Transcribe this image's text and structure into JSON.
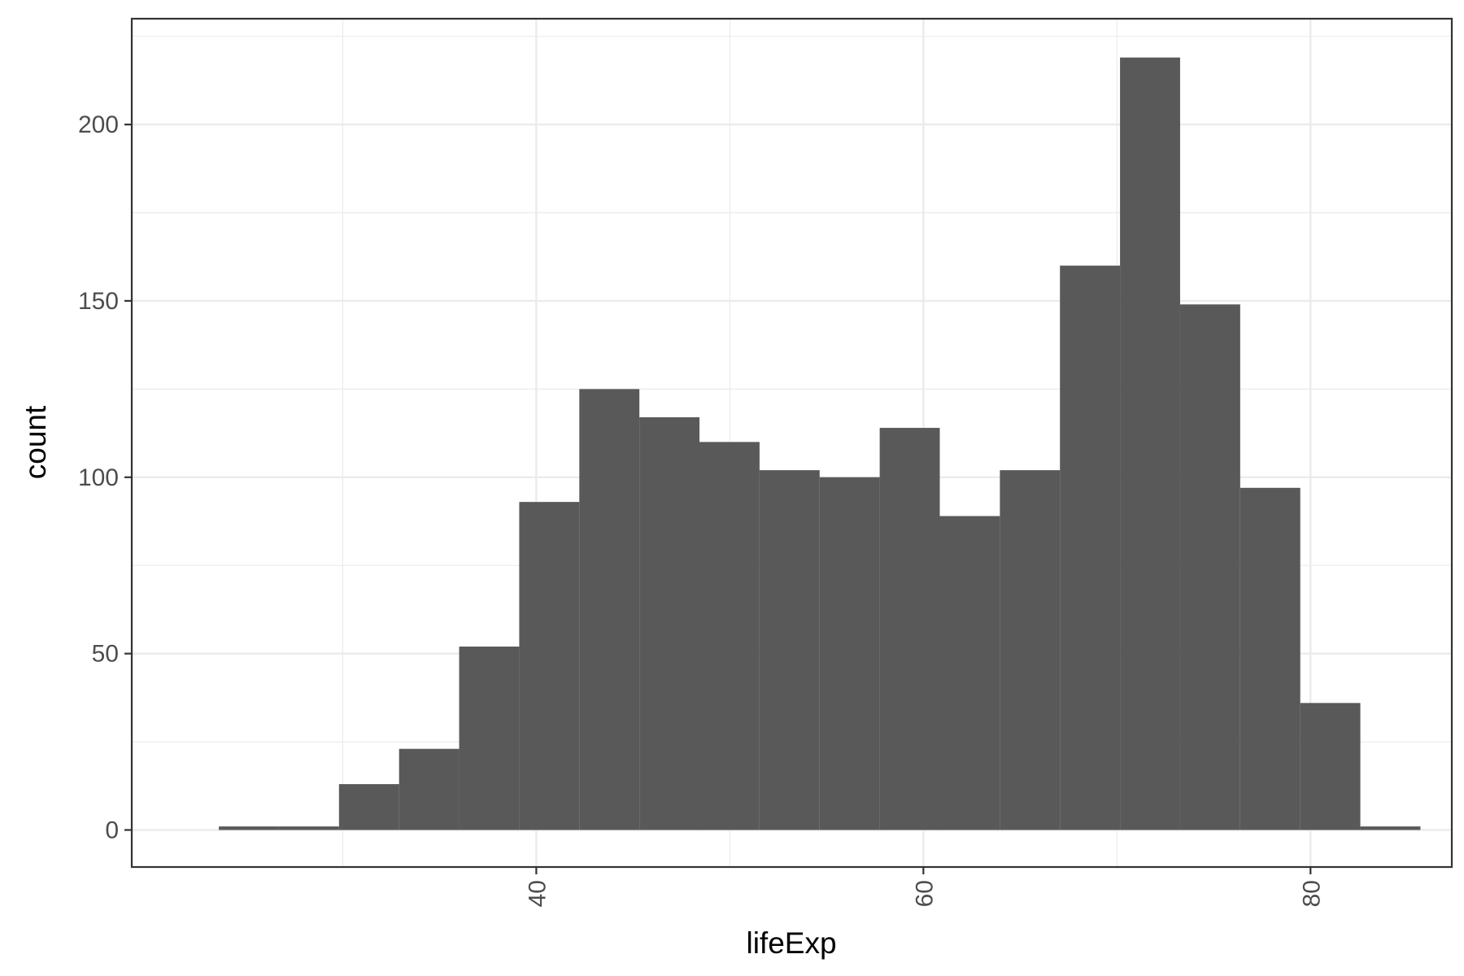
{
  "chart_data": {
    "type": "bar",
    "subtype": "histogram",
    "title": "",
    "xlabel": "lifeExp",
    "ylabel": "count",
    "bin_edges": [
      23.599,
      26.703,
      29.807,
      32.911,
      36.015,
      39.119,
      42.223,
      45.327,
      48.431,
      51.535,
      54.639,
      57.743,
      60.847,
      63.951,
      67.055,
      70.159,
      73.263,
      76.367,
      79.471,
      82.575,
      85.679
    ],
    "values": [
      1,
      1,
      13,
      23,
      52,
      93,
      125,
      117,
      110,
      102,
      100,
      114,
      89,
      102,
      160,
      219,
      149,
      97,
      36,
      1
    ],
    "xlim": [
      19.1,
      87.3
    ],
    "ylim": [
      -10.5,
      230
    ],
    "x_ticks": [
      40,
      60,
      80
    ],
    "x_tick_labels": [
      "40",
      "60",
      "80"
    ],
    "x_tick_label_rotation": 90,
    "y_ticks": [
      0,
      50,
      100,
      150,
      200
    ],
    "y_tick_labels": [
      "0",
      "50",
      "100",
      "150",
      "200"
    ],
    "grid": true,
    "legend": "none",
    "bar_color": "#595959",
    "panel_border_color": "#333333",
    "grid_color": "#ebebeb",
    "background_color": "#ffffff"
  }
}
